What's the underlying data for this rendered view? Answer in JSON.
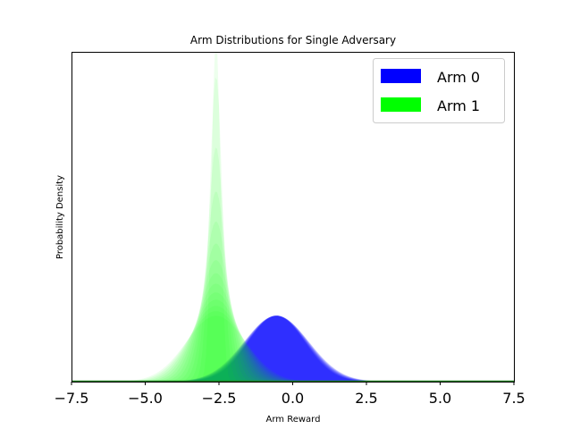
{
  "chart_data": {
    "type": "area",
    "title": "Arm Distributions for Single Adversary",
    "xlabel": "Arm Reward",
    "ylabel": "Probability Density",
    "xlim": [
      -7.5,
      7.5
    ],
    "ylim": [
      0,
      1
    ],
    "x_ticks": [
      -7.5,
      -5.0,
      -2.5,
      0.0,
      2.5,
      5.0,
      7.5
    ],
    "x_tick_labels": [
      "−7.5",
      "−5.0",
      "−2.5",
      "0.0",
      "2.5",
      "5.0",
      "7.5"
    ],
    "y_ticks_shown": false,
    "legend_position": "top-right",
    "series": [
      {
        "name": "Arm 0",
        "color": "#0000ff",
        "distribution": "normal",
        "mean": -0.55,
        "std_range": [
          0.95,
          1.1
        ],
        "peak_density": 0.2
      },
      {
        "name": "Arm 1",
        "color": "#00ff00",
        "distribution": "normal",
        "mean": -2.6,
        "std_range": [
          0.15,
          1.0
        ],
        "peak_density_range": [
          0.2,
          1.0
        ]
      }
    ]
  }
}
